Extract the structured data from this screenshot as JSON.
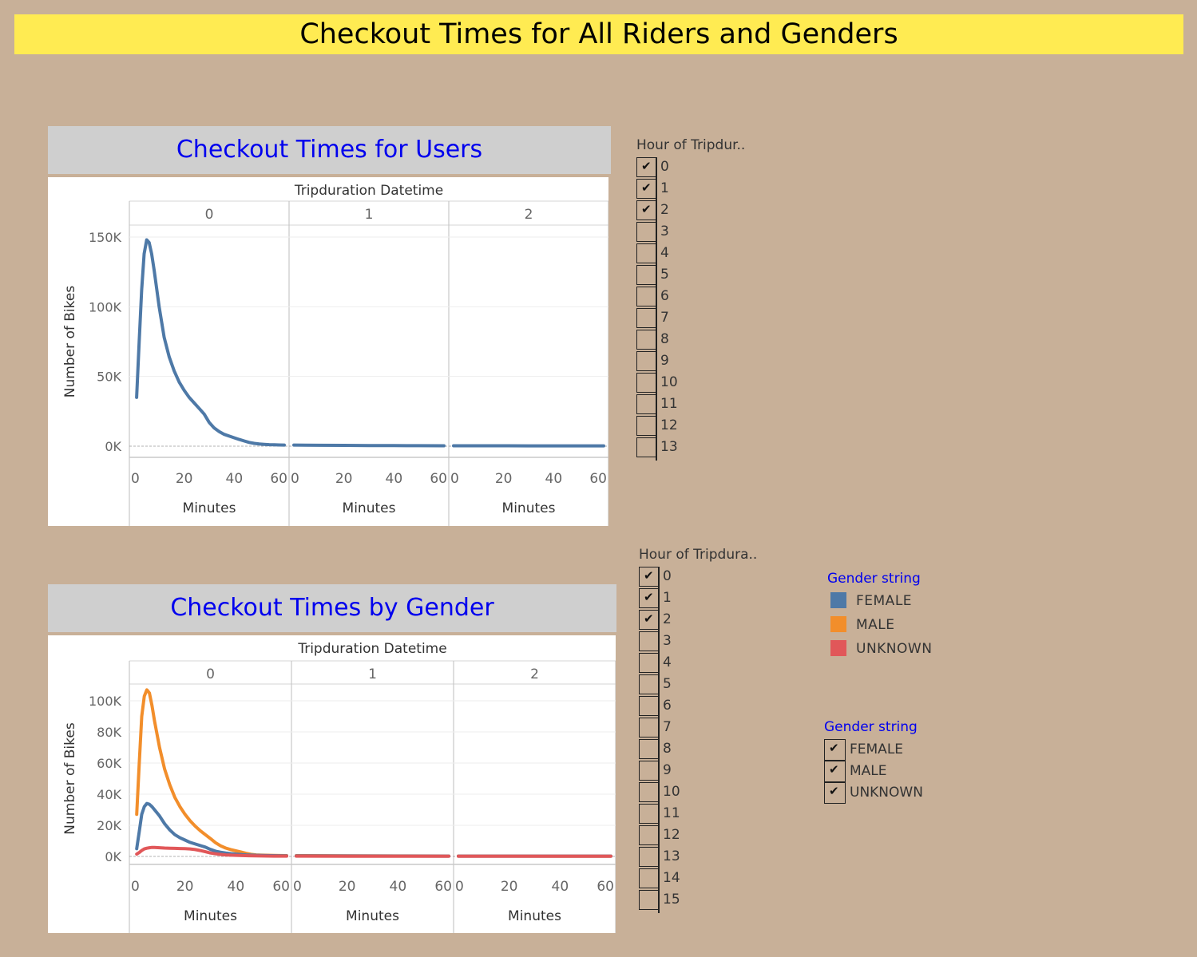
{
  "banner": {
    "title": "Checkout Times for All Riders and Genders"
  },
  "charts": {
    "users": {
      "title": "Checkout Times for Users"
    },
    "gender": {
      "title": "Checkout Times by Gender"
    }
  },
  "filters": {
    "hour1": {
      "title": "Hour of Tripdur..",
      "items": [
        {
          "label": "0",
          "checked": true
        },
        {
          "label": "1",
          "checked": true
        },
        {
          "label": "2",
          "checked": true
        },
        {
          "label": "3",
          "checked": false
        },
        {
          "label": "4",
          "checked": false
        },
        {
          "label": "5",
          "checked": false
        },
        {
          "label": "6",
          "checked": false
        },
        {
          "label": "7",
          "checked": false
        },
        {
          "label": "8",
          "checked": false
        },
        {
          "label": "9",
          "checked": false
        },
        {
          "label": "10",
          "checked": false
        },
        {
          "label": "11",
          "checked": false
        },
        {
          "label": "12",
          "checked": false
        },
        {
          "label": "13",
          "checked": false
        }
      ]
    },
    "hour2": {
      "title": "Hour of Tripdura..",
      "items": [
        {
          "label": "0",
          "checked": true
        },
        {
          "label": "1",
          "checked": true
        },
        {
          "label": "2",
          "checked": true
        },
        {
          "label": "3",
          "checked": false
        },
        {
          "label": "4",
          "checked": false
        },
        {
          "label": "5",
          "checked": false
        },
        {
          "label": "6",
          "checked": false
        },
        {
          "label": "7",
          "checked": false
        },
        {
          "label": "8",
          "checked": false
        },
        {
          "label": "9",
          "checked": false
        },
        {
          "label": "10",
          "checked": false
        },
        {
          "label": "11",
          "checked": false
        },
        {
          "label": "12",
          "checked": false
        },
        {
          "label": "13",
          "checked": false
        },
        {
          "label": "14",
          "checked": false
        },
        {
          "label": "15",
          "checked": false
        }
      ]
    }
  },
  "gender_legend": {
    "title": "Gender string",
    "items": [
      {
        "label": "FEMALE",
        "color": "#4e79a7"
      },
      {
        "label": "MALE",
        "color": "#f28e2b"
      },
      {
        "label": "UNKNOWN",
        "color": "#e15759"
      }
    ]
  },
  "gender_filter": {
    "title": "Gender string",
    "items": [
      {
        "label": "FEMALE",
        "checked": true
      },
      {
        "label": "MALE",
        "checked": true
      },
      {
        "label": "UNKNOWN",
        "checked": true
      }
    ]
  },
  "chart_data": [
    {
      "type": "line",
      "title": "Checkout Times for Users",
      "column_header": "Tripduration Datetime",
      "panels": [
        "0",
        "1",
        "2"
      ],
      "xlabel": "Minutes",
      "ylabel": "Number of Bikes",
      "x_ticks": [
        "0",
        "20",
        "40",
        "60"
      ],
      "xlim": [
        0,
        60
      ],
      "y_ticks": [
        "0K",
        "50K",
        "100K",
        "150K"
      ],
      "ylim": [
        0,
        150000
      ],
      "series": [
        {
          "color": "#4e79a7",
          "panels": [
            [
              [
                1,
                35000
              ],
              [
                2,
                75000
              ],
              [
                3,
                112000
              ],
              [
                4,
                138000
              ],
              [
                5,
                148000
              ],
              [
                6,
                146000
              ],
              [
                7,
                138000
              ],
              [
                8,
                126000
              ],
              [
                9,
                113000
              ],
              [
                10,
                100000
              ],
              [
                12,
                78000
              ],
              [
                14,
                64000
              ],
              [
                16,
                54000
              ],
              [
                18,
                46000
              ],
              [
                20,
                40000
              ],
              [
                22,
                35000
              ],
              [
                24,
                31000
              ],
              [
                26,
                27000
              ],
              [
                28,
                23000
              ],
              [
                30,
                17000
              ],
              [
                32,
                13000
              ],
              [
                34,
                10500
              ],
              [
                36,
                8500
              ],
              [
                38,
                7200
              ],
              [
                40,
                6000
              ],
              [
                42,
                4800
              ],
              [
                44,
                3700
              ],
              [
                46,
                2700
              ],
              [
                48,
                2000
              ],
              [
                50,
                1600
              ],
              [
                52,
                1300
              ],
              [
                54,
                1100
              ],
              [
                56,
                950
              ],
              [
                58,
                850
              ],
              [
                60,
                800
              ]
            ],
            [
              [
                0,
                800
              ],
              [
                10,
                650
              ],
              [
                20,
                550
              ],
              [
                30,
                450
              ],
              [
                40,
                400
              ],
              [
                50,
                350
              ],
              [
                60,
                300
              ]
            ],
            [
              [
                0,
                300
              ],
              [
                10,
                280
              ],
              [
                20,
                260
              ],
              [
                30,
                250
              ],
              [
                40,
                240
              ],
              [
                50,
                230
              ],
              [
                60,
                220
              ]
            ]
          ]
        }
      ]
    },
    {
      "type": "line",
      "title": "Checkout Times by Gender",
      "column_header": "Tripduration Datetime",
      "panels": [
        "0",
        "1",
        "2"
      ],
      "xlabel": "Minutes",
      "ylabel": "Number of Bikes",
      "x_ticks": [
        "0",
        "20",
        "40",
        "60"
      ],
      "xlim": [
        0,
        60
      ],
      "y_ticks": [
        "0K",
        "20K",
        "40K",
        "60K",
        "80K",
        "100K"
      ],
      "ylim": [
        0,
        100000
      ],
      "series": [
        {
          "name": "MALE",
          "color": "#f28e2b",
          "panels": [
            [
              [
                1,
                27000
              ],
              [
                2,
                60000
              ],
              [
                3,
                90000
              ],
              [
                4,
                103000
              ],
              [
                5,
                107000
              ],
              [
                6,
                105000
              ],
              [
                7,
                97000
              ],
              [
                8,
                87000
              ],
              [
                10,
                70000
              ],
              [
                12,
                56000
              ],
              [
                14,
                46000
              ],
              [
                16,
                38000
              ],
              [
                18,
                32000
              ],
              [
                20,
                27000
              ],
              [
                22,
                23000
              ],
              [
                24,
                19500
              ],
              [
                26,
                16500
              ],
              [
                28,
                14000
              ],
              [
                30,
                11500
              ],
              [
                32,
                8800
              ],
              [
                34,
                6800
              ],
              [
                36,
                5400
              ],
              [
                38,
                4400
              ],
              [
                40,
                3600
              ],
              [
                42,
                2800
              ],
              [
                44,
                2000
              ],
              [
                46,
                1400
              ],
              [
                48,
                1000
              ],
              [
                50,
                800
              ],
              [
                55,
                600
              ],
              [
                60,
                500
              ]
            ],
            [
              [
                0,
                500
              ],
              [
                20,
                400
              ],
              [
                40,
                330
              ],
              [
                60,
                280
              ]
            ],
            [
              [
                0,
                280
              ],
              [
                20,
                250
              ],
              [
                40,
                230
              ],
              [
                60,
                210
              ]
            ]
          ]
        },
        {
          "name": "FEMALE",
          "color": "#4e79a7",
          "panels": [
            [
              [
                1,
                5000
              ],
              [
                2,
                16000
              ],
              [
                3,
                27000
              ],
              [
                4,
                32000
              ],
              [
                5,
                34000
              ],
              [
                6,
                33500
              ],
              [
                7,
                32000
              ],
              [
                8,
                30000
              ],
              [
                10,
                26000
              ],
              [
                12,
                21000
              ],
              [
                14,
                17000
              ],
              [
                16,
                14000
              ],
              [
                18,
                12000
              ],
              [
                20,
                10500
              ],
              [
                22,
                9000
              ],
              [
                24,
                8000
              ],
              [
                26,
                7000
              ],
              [
                28,
                6000
              ],
              [
                30,
                4500
              ],
              [
                32,
                3400
              ],
              [
                34,
                2700
              ],
              [
                36,
                2200
              ],
              [
                38,
                1800
              ],
              [
                40,
                1500
              ],
              [
                44,
                1000
              ],
              [
                48,
                700
              ],
              [
                52,
                550
              ],
              [
                56,
                450
              ],
              [
                60,
                400
              ]
            ],
            [
              [
                0,
                400
              ],
              [
                20,
                320
              ],
              [
                40,
                260
              ],
              [
                60,
                230
              ]
            ],
            [
              [
                0,
                230
              ],
              [
                20,
                210
              ],
              [
                40,
                200
              ],
              [
                60,
                190
              ]
            ]
          ]
        },
        {
          "name": "UNKNOWN",
          "color": "#e15759",
          "panels": [
            [
              [
                1,
                1500
              ],
              [
                2,
                2500
              ],
              [
                3,
                3800
              ],
              [
                4,
                4800
              ],
              [
                5,
                5300
              ],
              [
                6,
                5600
              ],
              [
                7,
                5800
              ],
              [
                8,
                5800
              ],
              [
                10,
                5600
              ],
              [
                12,
                5400
              ],
              [
                14,
                5300
              ],
              [
                16,
                5200
              ],
              [
                18,
                5100
              ],
              [
                20,
                5000
              ],
              [
                22,
                4800
              ],
              [
                24,
                4400
              ],
              [
                26,
                3800
              ],
              [
                28,
                3000
              ],
              [
                30,
                2200
              ],
              [
                32,
                1700
              ],
              [
                34,
                1300
              ],
              [
                36,
                1000
              ],
              [
                40,
                700
              ],
              [
                45,
                450
              ],
              [
                50,
                300
              ],
              [
                55,
                220
              ],
              [
                60,
                180
              ]
            ],
            [
              [
                0,
                180
              ],
              [
                20,
                140
              ],
              [
                40,
                120
              ],
              [
                60,
                110
              ]
            ],
            [
              [
                0,
                110
              ],
              [
                20,
                100
              ],
              [
                40,
                95
              ],
              [
                60,
                90
              ]
            ]
          ]
        }
      ]
    }
  ]
}
